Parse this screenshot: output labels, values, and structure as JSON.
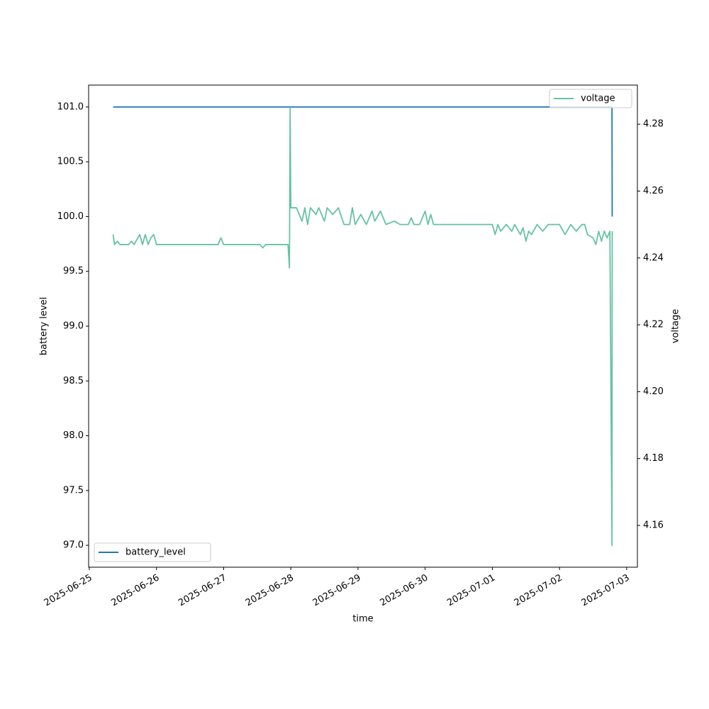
{
  "chart_data": {
    "type": "line",
    "xlabel": "time",
    "ylabel": "battery level",
    "y2label": "voltage",
    "x": [
      "2025-06-25 08:30",
      "2025-06-25 09:00",
      "2025-06-25 10:00",
      "2025-06-25 11:00",
      "2025-06-25 14:00",
      "2025-06-25 15:00",
      "2025-06-25 16:00",
      "2025-06-25 18:00",
      "2025-06-25 19:00",
      "2025-06-25 20:00",
      "2025-06-25 21:00",
      "2025-06-25 22:00",
      "2025-06-25 23:00",
      "2025-06-26 00:00",
      "2025-06-26 22:00",
      "2025-06-26 23:00",
      "2025-06-27 00:00",
      "2025-06-27 13:00",
      "2025-06-27 14:00",
      "2025-06-27 15:00",
      "2025-06-27 23:00",
      "2025-06-27 23:30",
      "2025-06-27 23:45",
      "2025-06-28 00:00",
      "2025-06-28 02:00",
      "2025-06-28 03:00",
      "2025-06-28 04:00",
      "2025-06-28 05:00",
      "2025-06-28 06:00",
      "2025-06-28 07:00",
      "2025-06-28 09:00",
      "2025-06-28 10:00",
      "2025-06-28 12:00",
      "2025-06-28 13:00",
      "2025-06-28 15:00",
      "2025-06-28 17:00",
      "2025-06-28 19:00",
      "2025-06-28 21:00",
      "2025-06-28 22:00",
      "2025-06-28 23:00",
      "2025-06-29 01:00",
      "2025-06-29 03:00",
      "2025-06-29 05:00",
      "2025-06-29 06:00",
      "2025-06-29 08:00",
      "2025-06-29 10:00",
      "2025-06-29 13:00",
      "2025-06-29 15:00",
      "2025-06-29 18:00",
      "2025-06-29 19:00",
      "2025-06-29 20:00",
      "2025-06-29 22:00",
      "2025-06-29 23:00",
      "2025-06-30 00:00",
      "2025-06-30 01:00",
      "2025-06-30 02:00",
      "2025-06-30 03:00",
      "2025-07-01 00:00",
      "2025-07-01 01:00",
      "2025-07-01 02:00",
      "2025-07-01 03:00",
      "2025-07-01 05:00",
      "2025-07-01 07:00",
      "2025-07-01 08:00",
      "2025-07-01 10:00",
      "2025-07-01 11:00",
      "2025-07-01 12:00",
      "2025-07-01 13:00",
      "2025-07-01 14:00",
      "2025-07-01 16:00",
      "2025-07-01 18:00",
      "2025-07-01 20:00",
      "2025-07-02 00:00",
      "2025-07-02 02:00",
      "2025-07-02 04:00",
      "2025-07-02 06:00",
      "2025-07-02 08:00",
      "2025-07-02 09:00",
      "2025-07-02 10:00",
      "2025-07-02 12:00",
      "2025-07-02 13:00",
      "2025-07-02 14:00",
      "2025-07-02 15:00",
      "2025-07-02 16:00",
      "2025-07-02 17:00",
      "2025-07-02 18:00",
      "2025-07-02 18:45",
      "2025-07-02 18:50"
    ],
    "series": [
      {
        "name": "battery_level",
        "color": "#1f77b4",
        "axis": "y",
        "legend_loc": "lower left",
        "values": [
          101,
          101,
          101,
          101,
          101,
          101,
          101,
          101,
          101,
          101,
          101,
          101,
          101,
          101,
          101,
          101,
          101,
          101,
          101,
          101,
          101,
          101,
          101,
          101,
          101,
          101,
          101,
          101,
          101,
          101,
          101,
          101,
          101,
          101,
          101,
          101,
          101,
          101,
          101,
          101,
          101,
          101,
          101,
          101,
          101,
          101,
          101,
          101,
          101,
          101,
          101,
          101,
          101,
          101,
          101,
          101,
          101,
          101,
          101,
          101,
          101,
          101,
          101,
          101,
          101,
          101,
          101,
          101,
          101,
          101,
          101,
          101,
          101,
          101,
          101,
          101,
          101,
          101,
          101,
          101,
          101,
          101,
          101,
          101,
          101,
          101,
          101,
          100
        ]
      },
      {
        "name": "voltage",
        "color": "#66c2a5",
        "axis": "y2",
        "legend_loc": "upper right",
        "values": [
          4.247,
          4.244,
          4.245,
          4.244,
          4.244,
          4.245,
          4.244,
          4.247,
          4.244,
          4.247,
          4.244,
          4.246,
          4.247,
          4.244,
          4.244,
          4.246,
          4.244,
          4.244,
          4.243,
          4.244,
          4.244,
          4.237,
          4.285,
          4.255,
          4.255,
          4.253,
          4.251,
          4.255,
          4.25,
          4.255,
          4.253,
          4.255,
          4.251,
          4.255,
          4.253,
          4.255,
          4.25,
          4.25,
          4.255,
          4.25,
          4.253,
          4.25,
          4.254,
          4.251,
          4.254,
          4.25,
          4.251,
          4.25,
          4.25,
          4.252,
          4.25,
          4.25,
          4.252,
          4.254,
          4.25,
          4.253,
          4.25,
          4.25,
          4.247,
          4.25,
          4.248,
          4.25,
          4.248,
          4.25,
          4.247,
          4.249,
          4.245,
          4.248,
          4.247,
          4.25,
          4.248,
          4.25,
          4.25,
          4.247,
          4.25,
          4.248,
          4.25,
          4.25,
          4.247,
          4.246,
          4.244,
          4.248,
          4.245,
          4.248,
          4.246,
          4.248,
          4.154,
          4.248
        ]
      }
    ],
    "xlim": [
      "2025-06-24 23:45",
      "2025-07-03 03:50"
    ],
    "xticks": [
      "2025-06-25",
      "2025-06-26",
      "2025-06-27",
      "2025-06-28",
      "2025-06-29",
      "2025-06-30",
      "2025-07-01",
      "2025-07-02",
      "2025-07-03"
    ],
    "ylim": [
      96.8,
      101.2
    ],
    "yticks": [
      {
        "value": 97,
        "label": "97.0"
      },
      {
        "value": 97.5,
        "label": "97.5"
      },
      {
        "value": 98,
        "label": "98.0"
      },
      {
        "value": 98.5,
        "label": "98.5"
      },
      {
        "value": 99,
        "label": "99.0"
      },
      {
        "value": 99.5,
        "label": "99.5"
      },
      {
        "value": 100,
        "label": "100.0"
      },
      {
        "value": 100.5,
        "label": "100.5"
      },
      {
        "value": 101,
        "label": "101.0"
      }
    ],
    "y2lim": [
      4.1475,
      4.2917
    ],
    "y2ticks": [
      4.16,
      4.18,
      {
        "value": 4.2,
        "label": "4.20"
      },
      4.22,
      4.24,
      4.26,
      4.28
    ],
    "grid": false
  }
}
